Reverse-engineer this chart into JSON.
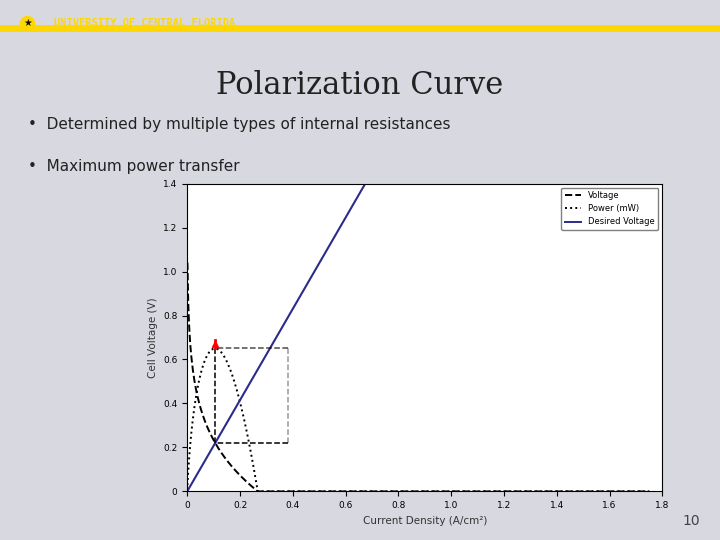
{
  "title": "Polarization Curve",
  "bullet1": "Determined by multiple types of internal resistances",
  "bullet2": "Maximum power transfer",
  "header_bg": "#111111",
  "header_text": "UNIVERSITY OF CENTRAL FLORIDA",
  "header_gold": "#FFD700",
  "slide_bg": "#d8d8e0",
  "chart_bg": "#ffffff",
  "page_number": "10",
  "xlabel": "Current Density (A/cm²)",
  "ylabel": "Cell Voltage (V)",
  "legend_labels": [
    "Voltage",
    "Power (mW)",
    "Desired Voltage"
  ],
  "xlim": [
    0,
    1.8
  ],
  "ylim": [
    0,
    1.4
  ],
  "x_ticks": [
    0.0,
    0.2,
    0.4,
    0.6,
    0.8,
    1.0,
    1.2,
    1.4,
    1.6,
    1.8
  ],
  "y_ticks": [
    0.0,
    0.2,
    0.4,
    0.6,
    0.8,
    1.0,
    1.2,
    1.4
  ]
}
